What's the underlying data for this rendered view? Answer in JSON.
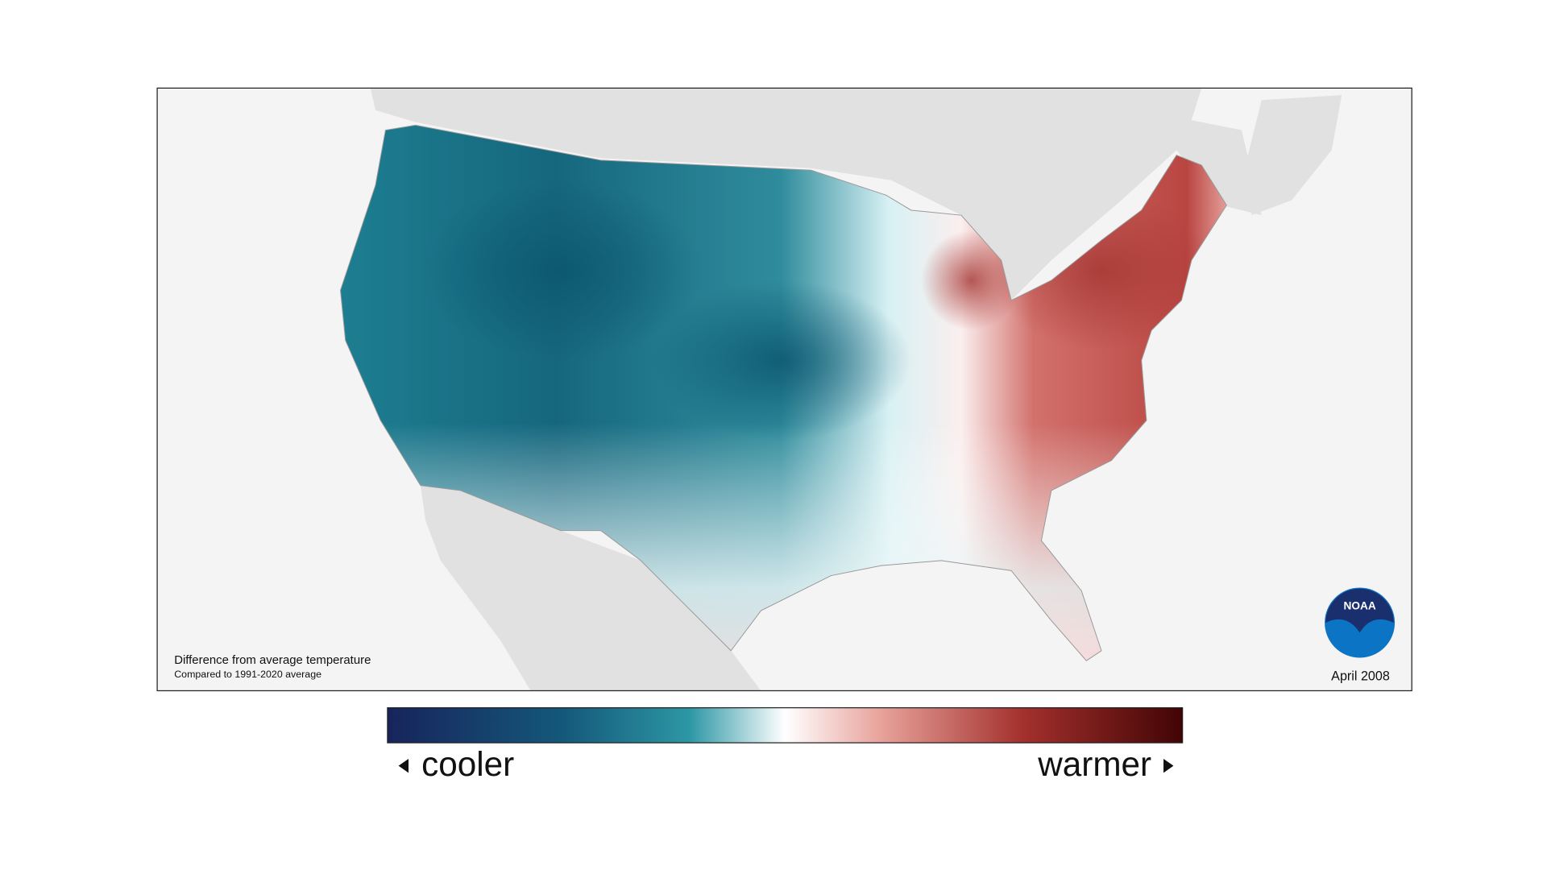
{
  "map": {
    "note_title": "Difference from average temperature",
    "note_subtitle": "Compared to 1991-2020 average",
    "date": "April 2008",
    "logo": "NOAA",
    "legend": {
      "low": "cooler",
      "high": "warmer"
    }
  }
}
